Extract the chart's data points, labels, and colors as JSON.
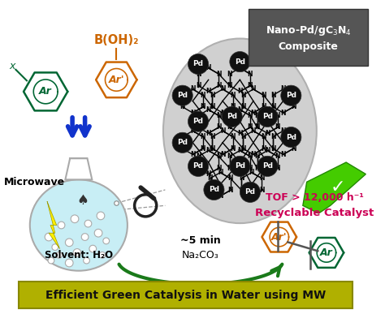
{
  "bg_color": "#ffffff",
  "title_box_color": "#b0b000",
  "title_text": "Efficient Green Catalysis in Water using MW",
  "title_text_color": "#111111",
  "nano_box_color": "#555555",
  "nano_box_text_color": "#ffffff",
  "tof_text": "TOF > 12,000 h⁻¹",
  "tof_text_color": "#cc0055",
  "recyclable_text": "Recyclable Catalyst",
  "recyclable_text_color": "#cc0055",
  "boron_text": "B(OH)₂",
  "boron_text_color": "#cc6600",
  "ar_prime_top_color": "#cc6600",
  "ar_top_color": "#006633",
  "ar_prime_bottom_color": "#cc6600",
  "ar_bottom_color": "#006633",
  "microwave_text": "Microwave",
  "solvent_text": "Solvent: H₂O",
  "arrow_5min_text": "~5 min",
  "na2co3_text": "Na₂CO₃",
  "flask_body_color": "#c8eef5",
  "flask_outline_color": "#aaaaaa",
  "lightning_color": "#ffee00",
  "pd_ball_color": "#111111",
  "pd_text_color": "#ffffff",
  "green_arrow_color": "#1a7a1a",
  "blue_arrow_color": "#1133cc",
  "green_check_color": "#44cc00",
  "x_label_color": "#006633",
  "x_label": "x",
  "nano_ellipse_color": "#d0d0d0",
  "nano_ellipse_edge": "#b0b0b0",
  "magnifier_color": "#222222",
  "dashed_color": "#999999"
}
